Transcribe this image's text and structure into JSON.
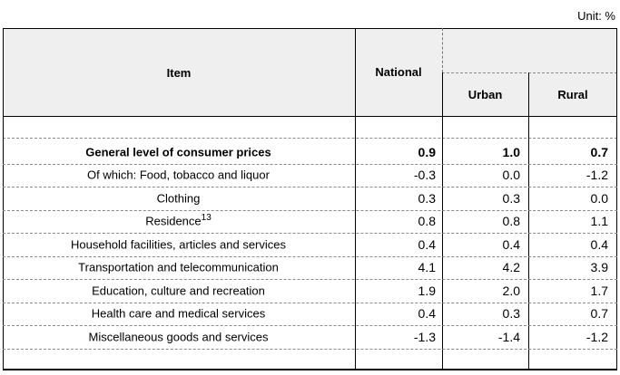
{
  "unit_label": "Unit: %",
  "header": {
    "item": "Item",
    "national": "National",
    "urban": "Urban",
    "rural": "Rural"
  },
  "rows": [
    {
      "item": "General level of consumer prices",
      "national": "0.9",
      "urban": "1.0",
      "rural": "0.7",
      "bold": true
    },
    {
      "item": "Of which:   Food, tobacco and liquor",
      "national": "-0.3",
      "urban": "0.0",
      "rural": "-1.2"
    },
    {
      "item": "Clothing",
      "national": "0.3",
      "urban": "0.3",
      "rural": "0.0"
    },
    {
      "item": "Residence",
      "sup": "13",
      "national": "0.8",
      "urban": "0.8",
      "rural": "1.1"
    },
    {
      "item": "Household facilities, articles and services",
      "national": "0.4",
      "urban": "0.4",
      "rural": "0.4"
    },
    {
      "item": "Transportation and telecommunication",
      "national": "4.1",
      "urban": "4.2",
      "rural": "3.9"
    },
    {
      "item": "Education, culture and recreation",
      "national": "1.9",
      "urban": "2.0",
      "rural": "1.7"
    },
    {
      "item": "Health care and medical services",
      "national": "0.4",
      "urban": "0.3",
      "rural": "0.7"
    },
    {
      "item": "Miscellaneous goods and services",
      "national": "-1.3",
      "urban": "-1.4",
      "rural": "-1.2"
    }
  ]
}
